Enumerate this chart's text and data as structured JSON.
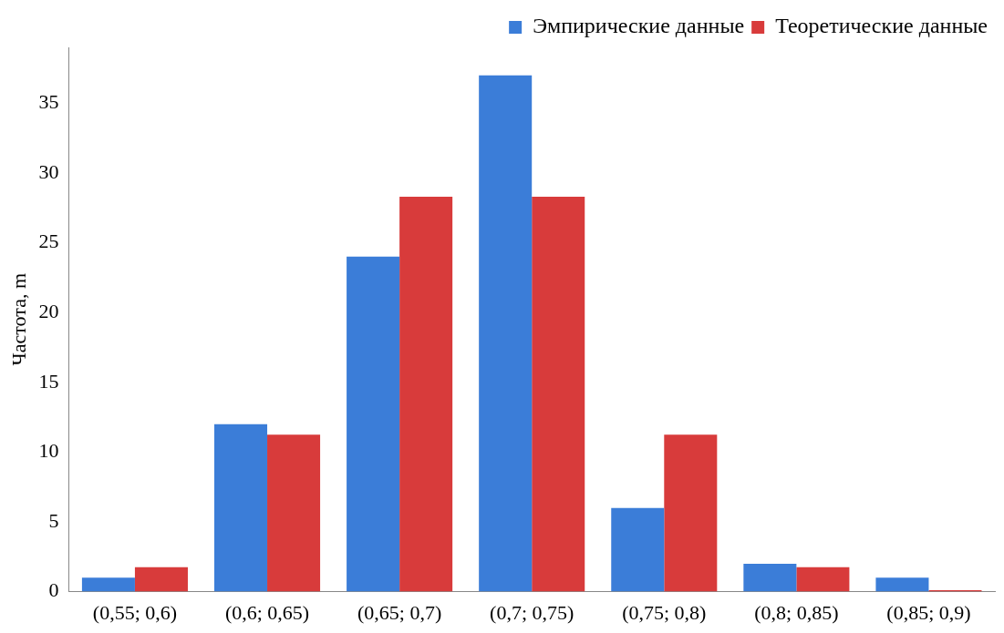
{
  "chart_data": {
    "type": "bar",
    "ylabel": "Частота, m",
    "categories": [
      "(0,55; 0,6)",
      "(0,6; 0,65)",
      "(0,65; 0,7)",
      "(0,7; 0,75)",
      "(0,75; 0,8)",
      "(0,8; 0,85)",
      "(0,85; 0,9)"
    ],
    "series": [
      {
        "name": "Эмпирические данные",
        "color": "#3b7dd8",
        "values": [
          1,
          12,
          24,
          37,
          6,
          2,
          1
        ]
      },
      {
        "name": "Теоретические данные",
        "color": "#d83b3b",
        "values": [
          1.75,
          11.25,
          28.3,
          28.3,
          11.25,
          1.75,
          0.1
        ]
      }
    ],
    "ylim": [
      0,
      39
    ],
    "yticks": [
      0,
      5,
      10,
      15,
      20,
      25,
      30,
      35
    ],
    "grid": false,
    "legend": "top right"
  }
}
